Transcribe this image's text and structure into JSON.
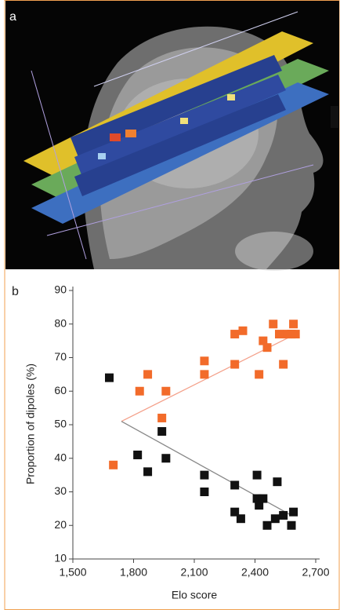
{
  "panel_labels": [
    "a",
    "b"
  ],
  "chart_data": {
    "type": "scatter",
    "x_label": "Elo score",
    "y_label": "Proportion of dipoles (%)",
    "xlim": [
      1500,
      2700
    ],
    "xticks": [
      {
        "value": 1500,
        "label": "1,500"
      },
      {
        "value": 1800,
        "label": "1,800"
      },
      {
        "value": 2100,
        "label": "2,100"
      },
      {
        "value": 2400,
        "label": "2,400"
      },
      {
        "value": 2700,
        "label": "2,700"
      }
    ],
    "ylim": [
      10,
      90
    ],
    "yticks": [
      10,
      20,
      30,
      40,
      50,
      60,
      70,
      80,
      90
    ],
    "series": [
      {
        "color": "#f26b2a",
        "x": [
          1700,
          1830,
          1870,
          1940,
          1960,
          2150,
          2150,
          2300,
          2300,
          2340,
          2420,
          2440,
          2460,
          2490,
          2520,
          2540,
          2560,
          2580,
          2590,
          2600
        ],
        "values": [
          38,
          60,
          65,
          52,
          60,
          69,
          65,
          68,
          77,
          78,
          65,
          75,
          73,
          80,
          77,
          68,
          77,
          77,
          80,
          77
        ]
      },
      {
        "color": "#111111",
        "x": [
          1680,
          1820,
          1870,
          1940,
          1960,
          2150,
          2150,
          2300,
          2300,
          2330,
          2410,
          2410,
          2420,
          2440,
          2460,
          2500,
          2510,
          2540,
          2580,
          2590
        ],
        "values": [
          64,
          41,
          36,
          48,
          40,
          35,
          30,
          32,
          24,
          22,
          35,
          28,
          26,
          28,
          20,
          22,
          33,
          23,
          20,
          24
        ]
      }
    ],
    "fits": [
      {
        "color": "#f4a08a",
        "x": [
          1740,
          2600
        ],
        "values": [
          51,
          77
        ]
      },
      {
        "color": "#888888",
        "x": [
          1740,
          2580
        ],
        "values": [
          51,
          23
        ]
      }
    ]
  }
}
